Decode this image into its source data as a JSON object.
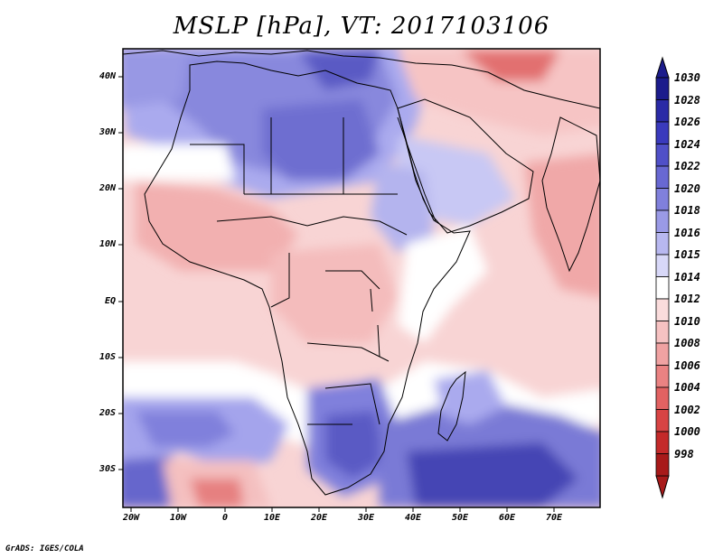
{
  "title": "MSLP [hPa], VT: 2017103106",
  "credit": "GrADS: IGES/COLA",
  "lat_labels": [
    "40N",
    "30N",
    "20N",
    "10N",
    "EQ",
    "10S",
    "20S",
    "30S"
  ],
  "lon_labels": [
    "20W",
    "10W",
    "0",
    "10E",
    "20E",
    "30E",
    "40E",
    "50E",
    "60E",
    "70E"
  ],
  "colorbar": {
    "levels": [
      "1030",
      "1028",
      "1026",
      "1024",
      "1022",
      "1020",
      "1018",
      "1016",
      "1015",
      "1014",
      "1012",
      "1010",
      "1008",
      "1006",
      "1004",
      "1002",
      "1000",
      "998"
    ],
    "colors": [
      "#1c1c8c",
      "#2a2aa6",
      "#3a3abd",
      "#5050c8",
      "#6868d2",
      "#8080dc",
      "#9a9ae6",
      "#b8b8f0",
      "#d8d8f8",
      "#ffffff",
      "#fadcdc",
      "#f6c2c2",
      "#f0a2a2",
      "#ea8282",
      "#e26262",
      "#d84444",
      "#c42a2a",
      "#a81a1a"
    ]
  },
  "field_colors": {
    "high_strong": "#4a4ab8",
    "high": "#7878d8",
    "high_weak": "#aaaaee",
    "high_faint": "#d8d8f8",
    "neutral": "#ffffff",
    "low_faint": "#fbe4e4",
    "low": "#f6c8c8",
    "low_strong": "#f0a8a8",
    "low_deep": "#e88080",
    "low_core": "#d85050"
  }
}
